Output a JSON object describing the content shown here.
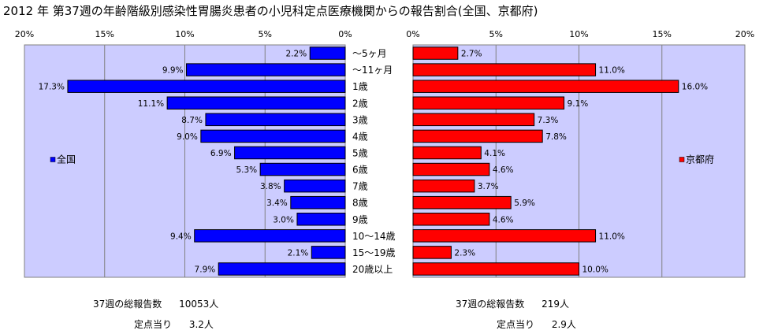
{
  "title": "2012 年 第37週の年齢階級別感染性胃腸炎患者の小児科定点医療機関からの報告割合(全国、京都府)",
  "chart_data": {
    "type": "bar",
    "orientation": "horizontal",
    "layout": "back-to-back",
    "categories": [
      "～5ヶ月",
      "～11ヶ月",
      "1歳",
      "2歳",
      "3歳",
      "4歳",
      "5歳",
      "6歳",
      "7歳",
      "8歳",
      "9歳",
      "10～14歳",
      "15～19歳",
      "20歳以上"
    ],
    "xlim": [
      0,
      20
    ],
    "ticks": [
      0,
      5,
      10,
      15,
      20
    ],
    "grid": true,
    "series": [
      {
        "name": "全国",
        "side": "left",
        "color": "#0000ff",
        "values": [
          2.2,
          9.9,
          17.3,
          11.1,
          8.7,
          9.0,
          6.9,
          5.3,
          3.8,
          3.4,
          3.0,
          9.4,
          2.1,
          7.9
        ],
        "labels": [
          "2.2%",
          "9.9%",
          "17.3%",
          "11.1%",
          "8.7%",
          "9.0%",
          "6.9%",
          "5.3%",
          "3.8%",
          "3.4%",
          "3.0%",
          "9.4%",
          "2.1%",
          "7.9%"
        ]
      },
      {
        "name": "京都府",
        "side": "right",
        "color": "#ff0000",
        "values": [
          2.7,
          11.0,
          16.0,
          9.1,
          7.3,
          7.8,
          4.1,
          4.6,
          3.7,
          5.9,
          4.6,
          11.0,
          2.3,
          10.0
        ],
        "labels": [
          "2.7%",
          "11.0%",
          "16.0%",
          "9.1%",
          "7.3%",
          "7.8%",
          "4.1%",
          "4.6%",
          "3.7%",
          "5.9%",
          "4.6%",
          "11.0%",
          "2.3%",
          "10.0%"
        ]
      }
    ],
    "tick_labels_left": [
      "20%",
      "15%",
      "10%",
      "5%",
      "0%"
    ],
    "tick_labels_right": [
      "0%",
      "5%",
      "10%",
      "15%",
      "20%"
    ],
    "plot_background": "#ccccff"
  },
  "footer": {
    "national": {
      "total_label": "37週の総報告数",
      "total_value": "10053人",
      "per_label": "定点当り",
      "per_value": "3.2人"
    },
    "kyoto": {
      "total_label": "37週の総報告数",
      "total_value": "219人",
      "per_label": "定点当り",
      "per_value": "2.9人"
    }
  }
}
